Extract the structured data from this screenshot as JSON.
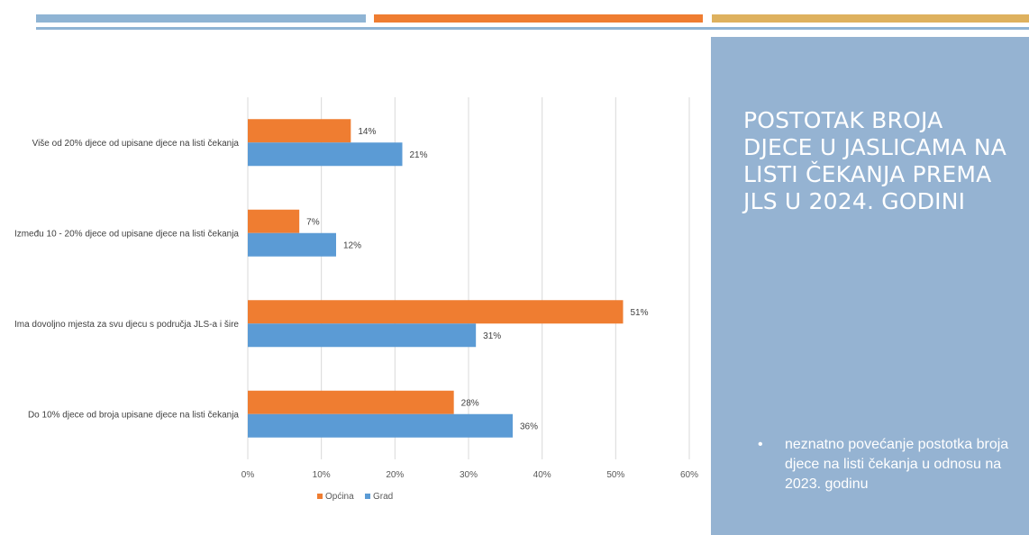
{
  "decor": {
    "bar_colors": [
      "#8fb4d4",
      "#ef7d31",
      "#deb15e"
    ]
  },
  "side": {
    "title": "POSTOTAK BROJA DJECE U JASLICAMA NA LISTI ČEKANJA PREMA JLS U 2024. GODINI",
    "bullets": [
      "neznatno povećanje postotka broja djece na listi čekanja u odnosu na 2023. godinu"
    ],
    "bg_color": "#95b3d2"
  },
  "chart_data": {
    "type": "bar",
    "orientation": "horizontal",
    "categories": [
      "Više od 20% djece od upisane djece na listi čekanja",
      "Između 10 - 20% djece od upisane djece na listi čekanja",
      "Ima dovoljno mjesta za svu djecu s područja JLS-a i šire",
      "Do 10% djece od broja upisane djece na listi čekanja"
    ],
    "series": [
      {
        "name": "Općina",
        "color": "#ef7d31",
        "values": [
          14,
          7,
          51,
          28
        ],
        "labels": [
          "14%",
          "7%",
          "51%",
          "28%"
        ]
      },
      {
        "name": "Grad",
        "color": "#5b9bd5",
        "values": [
          21,
          12,
          31,
          36
        ],
        "labels": [
          "21%",
          "12%",
          "31%",
          "36%"
        ]
      }
    ],
    "xlim": [
      0,
      60
    ],
    "xticks": [
      0,
      10,
      20,
      30,
      40,
      50,
      60
    ],
    "xtick_labels": [
      "0%",
      "10%",
      "20%",
      "30%",
      "40%",
      "50%",
      "60%"
    ],
    "grid": true,
    "legend_position": "bottom"
  }
}
